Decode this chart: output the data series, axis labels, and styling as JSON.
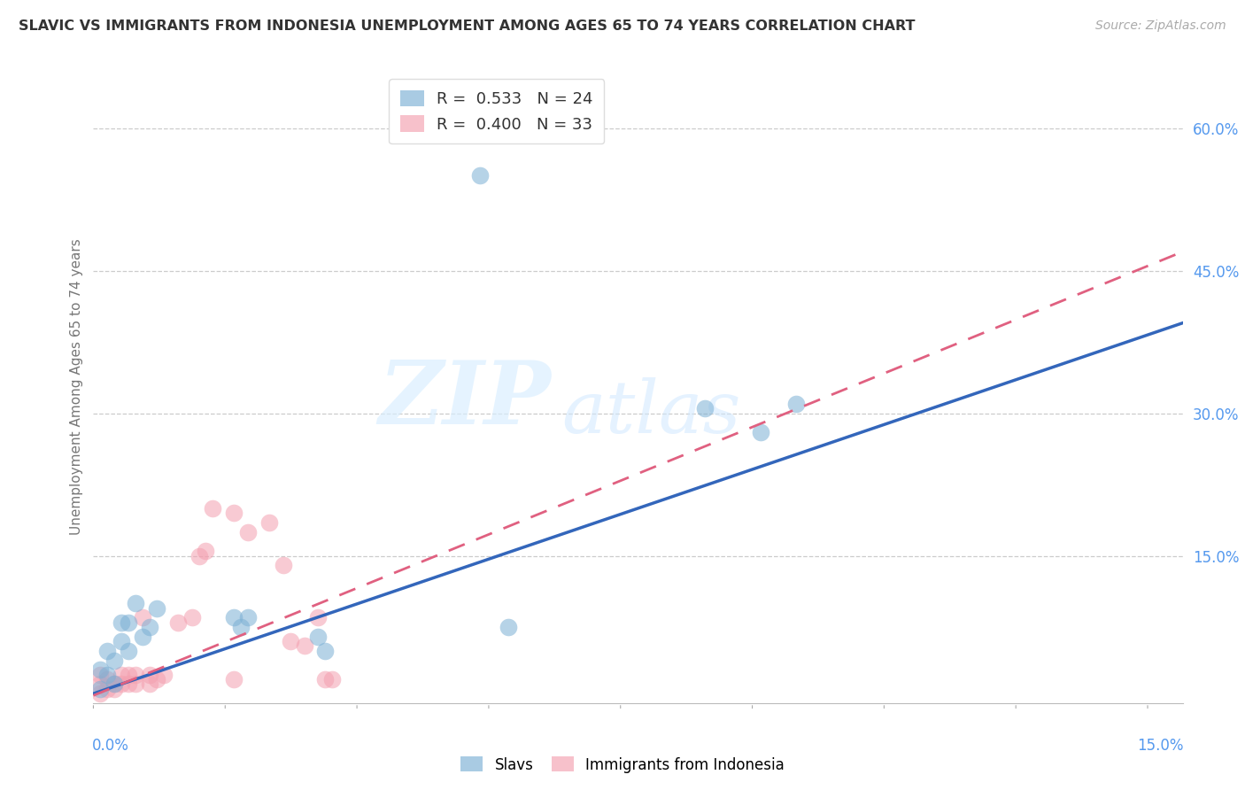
{
  "title": "SLAVIC VS IMMIGRANTS FROM INDONESIA UNEMPLOYMENT AMONG AGES 65 TO 74 YEARS CORRELATION CHART",
  "source": "Source: ZipAtlas.com",
  "ylabel": "Unemployment Among Ages 65 to 74 years",
  "ytick_labels": [
    "60.0%",
    "45.0%",
    "30.0%",
    "15.0%"
  ],
  "ytick_values": [
    0.6,
    0.45,
    0.3,
    0.15
  ],
  "xlim": [
    0.0,
    0.155
  ],
  "ylim": [
    -0.005,
    0.66
  ],
  "legend1_R": "0.533",
  "legend1_N": "24",
  "legend2_R": "0.400",
  "legend2_N": "33",
  "legend1_label": "Slavs",
  "legend2_label": "Immigrants from Indonesia",
  "slavs_color": "#7BAFD4",
  "indonesia_color": "#F4A0B0",
  "slavs_line_color": "#3366BB",
  "indonesia_line_color": "#E06080",
  "watermark_zip": "ZIP",
  "watermark_atlas": "atlas",
  "slavs_x": [
    0.001,
    0.001,
    0.002,
    0.002,
    0.003,
    0.003,
    0.004,
    0.004,
    0.005,
    0.005,
    0.006,
    0.007,
    0.008,
    0.009,
    0.02,
    0.021,
    0.022,
    0.032,
    0.033,
    0.055,
    0.059,
    0.087,
    0.095,
    0.1
  ],
  "slavs_y": [
    0.01,
    0.03,
    0.025,
    0.05,
    0.015,
    0.04,
    0.06,
    0.08,
    0.05,
    0.08,
    0.1,
    0.065,
    0.075,
    0.095,
    0.085,
    0.075,
    0.085,
    0.065,
    0.05,
    0.55,
    0.075,
    0.305,
    0.28,
    0.31
  ],
  "indonesia_x": [
    0.001,
    0.001,
    0.001,
    0.002,
    0.002,
    0.003,
    0.003,
    0.004,
    0.004,
    0.005,
    0.005,
    0.006,
    0.006,
    0.007,
    0.008,
    0.008,
    0.009,
    0.01,
    0.012,
    0.014,
    0.015,
    0.016,
    0.017,
    0.02,
    0.02,
    0.022,
    0.025,
    0.027,
    0.028,
    0.03,
    0.032,
    0.033,
    0.034
  ],
  "indonesia_y": [
    0.005,
    0.015,
    0.025,
    0.01,
    0.02,
    0.01,
    0.015,
    0.015,
    0.025,
    0.015,
    0.025,
    0.015,
    0.025,
    0.085,
    0.015,
    0.025,
    0.02,
    0.025,
    0.08,
    0.085,
    0.15,
    0.155,
    0.2,
    0.02,
    0.195,
    0.175,
    0.185,
    0.14,
    0.06,
    0.055,
    0.085,
    0.02,
    0.02
  ],
  "slavs_line_x0": 0.0,
  "slavs_line_y0": 0.005,
  "slavs_line_x1": 0.155,
  "slavs_line_y1": 0.395,
  "indonesia_line_x0": 0.0,
  "indonesia_line_y0": 0.003,
  "indonesia_line_x1": 0.155,
  "indonesia_line_y1": 0.47
}
